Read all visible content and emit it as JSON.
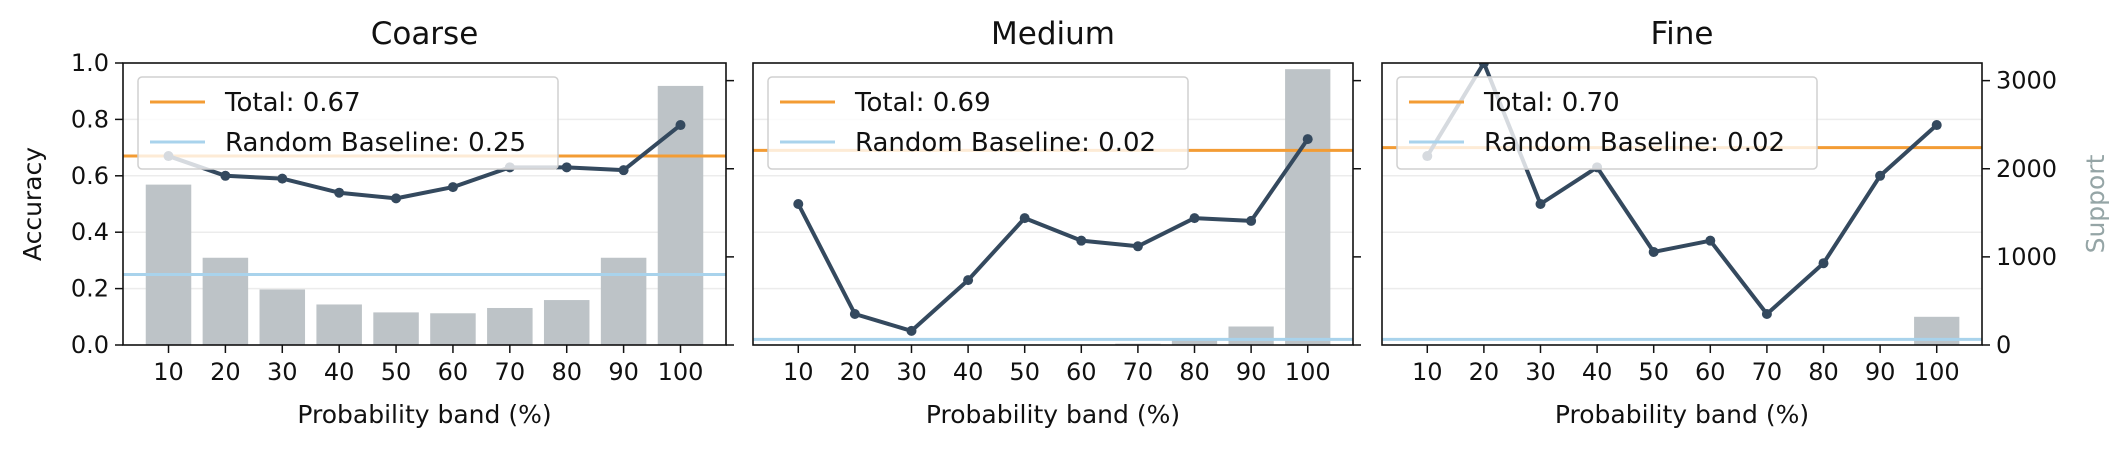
{
  "chart_data": [
    {
      "type": "bar+line",
      "title": "Coarse",
      "xlabel": "Probability band (%)",
      "ylabel": "Accuracy",
      "ylabel_right": "",
      "categories": [
        "10",
        "20",
        "30",
        "40",
        "50",
        "60",
        "70",
        "80",
        "90",
        "100"
      ],
      "accuracy": [
        0.67,
        0.6,
        0.59,
        0.54,
        0.52,
        0.56,
        0.63,
        0.63,
        0.62,
        0.78
      ],
      "support": [
        1820,
        990,
        630,
        460,
        370,
        360,
        420,
        510,
        990,
        2940
      ],
      "total": 0.67,
      "random_baseline": 0.25,
      "legend": [
        "Total: 0.67",
        "Random Baseline: 0.25"
      ],
      "ylim": [
        0,
        1.0
      ],
      "yticks": [
        "0.0",
        "0.2",
        "0.4",
        "0.6",
        "0.8",
        "1.0"
      ],
      "y2lim": [
        0,
        3200
      ],
      "y2ticks": [],
      "legend_position": "upper-left"
    },
    {
      "type": "bar+line",
      "title": "Medium",
      "xlabel": "Probability band (%)",
      "ylabel": "",
      "ylabel_right": "",
      "categories": [
        "10",
        "20",
        "30",
        "40",
        "50",
        "60",
        "70",
        "80",
        "90",
        "100"
      ],
      "accuracy": [
        0.5,
        0.11,
        0.05,
        0.23,
        0.45,
        0.37,
        0.35,
        0.45,
        0.44,
        0.73
      ],
      "support": [
        0,
        0,
        0,
        0,
        0,
        0,
        15,
        60,
        210,
        3130
      ],
      "total": 0.69,
      "random_baseline": 0.02,
      "legend": [
        "Total: 0.69",
        "Random Baseline: 0.02"
      ],
      "ylim": [
        0,
        1.0
      ],
      "yticks": [],
      "y2lim": [
        0,
        3200
      ],
      "y2ticks": [],
      "legend_position": "upper-left"
    },
    {
      "type": "bar+line",
      "title": "Fine",
      "xlabel": "Probability band (%)",
      "ylabel": "",
      "ylabel_right": "Support",
      "categories": [
        "10",
        "20",
        "30",
        "40",
        "50",
        "60",
        "70",
        "80",
        "90",
        "100"
      ],
      "accuracy": [
        0.67,
        1.0,
        0.5,
        0.63,
        0.33,
        0.37,
        0.11,
        0.29,
        0.6,
        0.78
      ],
      "support": [
        0,
        0,
        0,
        0,
        0,
        0,
        0,
        0,
        0,
        320
      ],
      "total": 0.7,
      "random_baseline": 0.02,
      "legend": [
        "Total: 0.70",
        "Random Baseline: 0.02"
      ],
      "ylim": [
        0,
        1.0
      ],
      "yticks": [],
      "y2lim": [
        0,
        3200
      ],
      "y2ticks": [
        "0",
        "1000",
        "2000",
        "3000"
      ],
      "legend_position": "upper-left"
    }
  ],
  "colors": {
    "accuracy_line": "#34495e",
    "total_line": "#f39c34",
    "baseline_line": "#a9d3ec",
    "bars": "#bdc3c7",
    "support_label": "#95a5a6"
  }
}
